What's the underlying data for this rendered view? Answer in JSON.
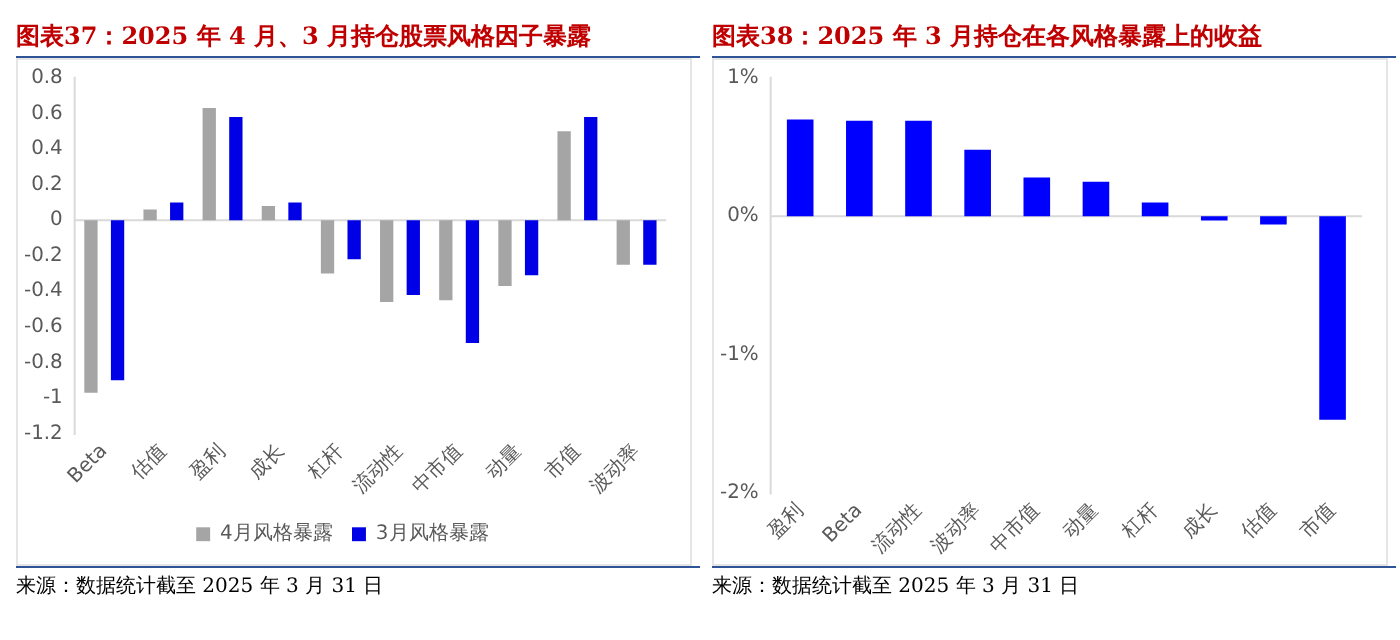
{
  "chart_data": [
    {
      "type": "bar",
      "title": "图表37：2025 年 4 月、3 月持仓股票风格因子暴露",
      "categories": [
        "Beta",
        "估值",
        "盈利",
        "成长",
        "杠杆",
        "流动性",
        "中市值",
        "动量",
        "市值",
        "波动率"
      ],
      "series": [
        {
          "name": "4月风格暴露",
          "color": "#a5a5a5",
          "values": [
            -0.97,
            0.06,
            0.63,
            0.08,
            -0.3,
            -0.46,
            -0.45,
            -0.37,
            0.5,
            -0.25
          ]
        },
        {
          "name": "3月风格暴露",
          "color": "#0000e6",
          "values": [
            -0.9,
            0.1,
            0.58,
            0.1,
            -0.22,
            -0.42,
            -0.69,
            -0.31,
            0.58,
            -0.25
          ]
        }
      ],
      "ref_lines": [
        {
          "axis": "y",
          "value": 0,
          "color": "#d9d9d9"
        }
      ],
      "ylim": [
        -1.2,
        0.8
      ],
      "yticks": [
        -1.2,
        -1,
        -0.8,
        -0.6,
        -0.4,
        -0.2,
        0,
        0.2,
        0.4,
        0.6,
        0.8
      ],
      "grid": false,
      "legend": "bottom",
      "annotations": [
        "来源：数据统计截至 2025 年 3 月 31 日"
      ]
    },
    {
      "type": "bar",
      "title": "图表38：2025 年 3 月持仓在各风格暴露上的收益",
      "categories": [
        "盈利",
        "Beta",
        "流动性",
        "波动率",
        "中市值",
        "动量",
        "杠杆",
        "成长",
        "估值",
        "市值"
      ],
      "series": [
        {
          "color": "#0000ff",
          "values": [
            0.7,
            0.69,
            0.69,
            0.48,
            0.28,
            0.25,
            0.1,
            -0.03,
            -0.06,
            -1.47
          ]
        }
      ],
      "ref_lines": [
        {
          "axis": "y",
          "value": 0,
          "color": "#d9d9d9"
        }
      ],
      "ylim": [
        -2,
        1
      ],
      "yticks": [
        {
          "value": -2,
          "label": "-2%"
        },
        {
          "value": -1,
          "label": "-1%"
        },
        {
          "value": 0,
          "label": "0%"
        },
        {
          "value": 1,
          "label": "1%"
        }
      ],
      "grid": false,
      "legend": false,
      "annotations": [
        "来源：数据统计截至 2025 年 3 月 31 日"
      ]
    }
  ]
}
